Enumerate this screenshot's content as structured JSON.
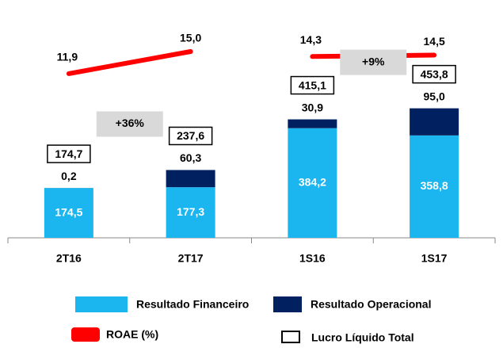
{
  "chart_data": {
    "type": "bar",
    "stacked": true,
    "categories": [
      "2T16",
      "2T17",
      "1S16",
      "1S17"
    ],
    "series": [
      {
        "name": "Resultado Financeiro",
        "color": "#1bb5ef",
        "values": [
          174.5,
          177.3,
          384.2,
          358.8
        ],
        "value_labels": [
          "174,5",
          "177,3",
          "384,2",
          "358,8"
        ]
      },
      {
        "name": "Resultado Operacional",
        "color": "#002060",
        "values": [
          0.2,
          60.3,
          30.9,
          95.0
        ],
        "value_labels": [
          "0,2",
          "60,3",
          "30,9",
          "95,0"
        ]
      }
    ],
    "totals": {
      "name": "Lucro Líquido Total",
      "values": [
        174.7,
        237.6,
        415.1,
        453.8
      ],
      "value_labels": [
        "174,7",
        "237,6",
        "415,1",
        "453,8"
      ]
    },
    "line": {
      "name": "ROAE (%)",
      "color": "#ff0000",
      "values": [
        11.9,
        15.0,
        14.3,
        14.5
      ],
      "value_labels": [
        "11,9",
        "15,0",
        "14,3",
        "14,5"
      ]
    },
    "annotations": [
      "+36%",
      "+9%"
    ]
  }
}
